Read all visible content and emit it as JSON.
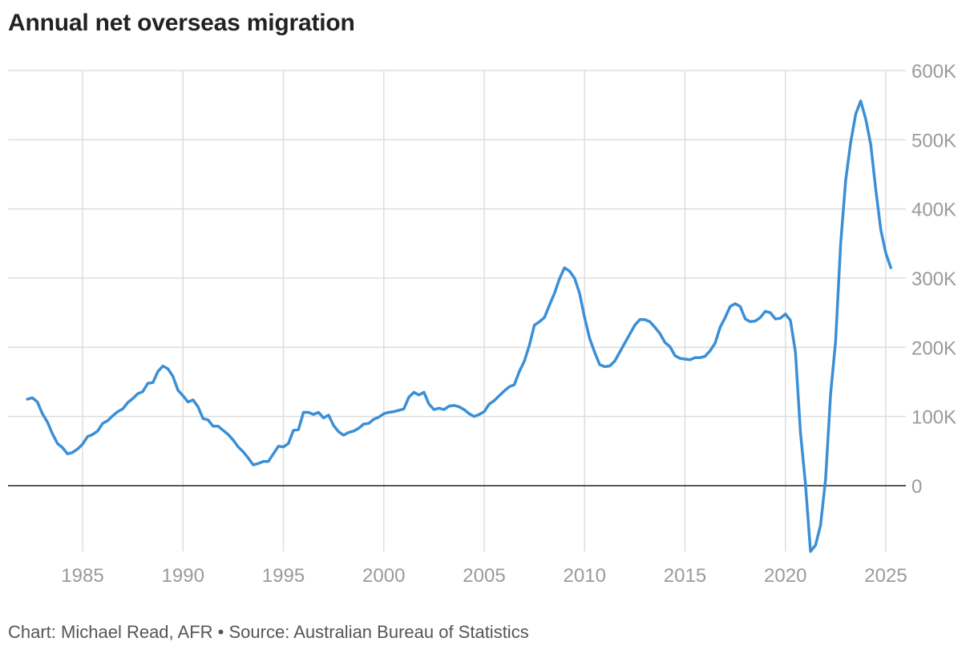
{
  "colors": {
    "line": "#3a8fd6",
    "grid": "#dddddd",
    "zero_line": "#222222",
    "tick_text": "#9a9a9a",
    "title_text": "#222222",
    "footer_text": "#555555"
  },
  "footer": {
    "credit": "Chart: Michael Read, AFR",
    "separator": "•",
    "source": "Source: Australian Bureau of Statistics"
  },
  "chart_data": {
    "type": "line",
    "title": "Annual net overseas migration",
    "xlabel": "",
    "ylabel": "",
    "xlim": [
      1981.6,
      2026.0
    ],
    "ylim": [
      -95000,
      600000
    ],
    "x_ticks": [
      1985,
      1990,
      1995,
      2000,
      2005,
      2010,
      2015,
      2020,
      2025
    ],
    "x_tick_labels": [
      "1985",
      "1990",
      "1995",
      "2000",
      "2005",
      "2010",
      "2015",
      "2020",
      "2025"
    ],
    "y_ticks": [
      0,
      100000,
      200000,
      300000,
      400000,
      500000,
      600000
    ],
    "y_tick_labels": [
      "0",
      "100K",
      "200K",
      "300K",
      "400K",
      "500K",
      "600K"
    ],
    "grid": true,
    "legend": "none",
    "series": [
      {
        "points": [
          [
            1982.25,
            125000
          ],
          [
            1982.5,
            127000
          ],
          [
            1982.75,
            121000
          ],
          [
            1983.0,
            104000
          ],
          [
            1983.25,
            92000
          ],
          [
            1983.5,
            75000
          ],
          [
            1983.75,
            61000
          ],
          [
            1984.0,
            55000
          ],
          [
            1984.25,
            46000
          ],
          [
            1984.5,
            48000
          ],
          [
            1984.75,
            53000
          ],
          [
            1985.0,
            60000
          ],
          [
            1985.25,
            71000
          ],
          [
            1985.5,
            74000
          ],
          [
            1985.75,
            79000
          ],
          [
            1986.0,
            90000
          ],
          [
            1986.25,
            94000
          ],
          [
            1986.5,
            101000
          ],
          [
            1986.75,
            107000
          ],
          [
            1987.0,
            111000
          ],
          [
            1987.25,
            120000
          ],
          [
            1987.5,
            126000
          ],
          [
            1987.75,
            133000
          ],
          [
            1988.0,
            136000
          ],
          [
            1988.25,
            148000
          ],
          [
            1988.5,
            149000
          ],
          [
            1988.75,
            165000
          ],
          [
            1989.0,
            173000
          ],
          [
            1989.25,
            169000
          ],
          [
            1989.5,
            158000
          ],
          [
            1989.75,
            138000
          ],
          [
            1990.0,
            130000
          ],
          [
            1990.25,
            121000
          ],
          [
            1990.5,
            124000
          ],
          [
            1990.75,
            114000
          ],
          [
            1991.0,
            97000
          ],
          [
            1991.25,
            95000
          ],
          [
            1991.5,
            86000
          ],
          [
            1991.75,
            86000
          ],
          [
            1992.0,
            80000
          ],
          [
            1992.25,
            74000
          ],
          [
            1992.5,
            66000
          ],
          [
            1992.75,
            56000
          ],
          [
            1993.0,
            49000
          ],
          [
            1993.25,
            40000
          ],
          [
            1993.5,
            30000
          ],
          [
            1993.75,
            32000
          ],
          [
            1994.0,
            35000
          ],
          [
            1994.25,
            35000
          ],
          [
            1994.5,
            46000
          ],
          [
            1994.75,
            57000
          ],
          [
            1995.0,
            56000
          ],
          [
            1995.25,
            61000
          ],
          [
            1995.5,
            80000
          ],
          [
            1995.75,
            81000
          ],
          [
            1996.0,
            106000
          ],
          [
            1996.25,
            106000
          ],
          [
            1996.5,
            103000
          ],
          [
            1996.75,
            106000
          ],
          [
            1997.0,
            98000
          ],
          [
            1997.25,
            102000
          ],
          [
            1997.5,
            87000
          ],
          [
            1997.75,
            78000
          ],
          [
            1998.0,
            73000
          ],
          [
            1998.25,
            77000
          ],
          [
            1998.5,
            79000
          ],
          [
            1998.75,
            83000
          ],
          [
            1999.0,
            89000
          ],
          [
            1999.25,
            90000
          ],
          [
            1999.5,
            96000
          ],
          [
            1999.75,
            99000
          ],
          [
            2000.0,
            104000
          ],
          [
            2000.25,
            106000
          ],
          [
            2000.5,
            107000
          ],
          [
            2000.75,
            109000
          ],
          [
            2001.0,
            111000
          ],
          [
            2001.25,
            128000
          ],
          [
            2001.5,
            135000
          ],
          [
            2001.75,
            131000
          ],
          [
            2002.0,
            135000
          ],
          [
            2002.25,
            118000
          ],
          [
            2002.5,
            110000
          ],
          [
            2002.75,
            112000
          ],
          [
            2003.0,
            110000
          ],
          [
            2003.25,
            115000
          ],
          [
            2003.5,
            116000
          ],
          [
            2003.75,
            114000
          ],
          [
            2004.0,
            110000
          ],
          [
            2004.25,
            104000
          ],
          [
            2004.5,
            100000
          ],
          [
            2004.75,
            103000
          ],
          [
            2005.0,
            107000
          ],
          [
            2005.25,
            118000
          ],
          [
            2005.5,
            123000
          ],
          [
            2005.75,
            130000
          ],
          [
            2006.0,
            137000
          ],
          [
            2006.25,
            143000
          ],
          [
            2006.5,
            146000
          ],
          [
            2006.75,
            165000
          ],
          [
            2007.0,
            180000
          ],
          [
            2007.25,
            203000
          ],
          [
            2007.5,
            232000
          ],
          [
            2007.75,
            237000
          ],
          [
            2008.0,
            243000
          ],
          [
            2008.25,
            261000
          ],
          [
            2008.5,
            278000
          ],
          [
            2008.75,
            299000
          ],
          [
            2009.0,
            315000
          ],
          [
            2009.25,
            310000
          ],
          [
            2009.5,
            300000
          ],
          [
            2009.75,
            278000
          ],
          [
            2010.0,
            243000
          ],
          [
            2010.25,
            213000
          ],
          [
            2010.5,
            193000
          ],
          [
            2010.75,
            175000
          ],
          [
            2011.0,
            172000
          ],
          [
            2011.25,
            173000
          ],
          [
            2011.5,
            180000
          ],
          [
            2011.75,
            193000
          ],
          [
            2012.0,
            206000
          ],
          [
            2012.25,
            219000
          ],
          [
            2012.5,
            232000
          ],
          [
            2012.75,
            240000
          ],
          [
            2013.0,
            240000
          ],
          [
            2013.25,
            237000
          ],
          [
            2013.5,
            229000
          ],
          [
            2013.75,
            220000
          ],
          [
            2014.0,
            207000
          ],
          [
            2014.25,
            201000
          ],
          [
            2014.5,
            188000
          ],
          [
            2014.75,
            184000
          ],
          [
            2015.0,
            183000
          ],
          [
            2015.25,
            182000
          ],
          [
            2015.5,
            185000
          ],
          [
            2015.75,
            185000
          ],
          [
            2016.0,
            187000
          ],
          [
            2016.25,
            195000
          ],
          [
            2016.5,
            206000
          ],
          [
            2016.75,
            229000
          ],
          [
            2017.0,
            243000
          ],
          [
            2017.25,
            259000
          ],
          [
            2017.5,
            263000
          ],
          [
            2017.75,
            259000
          ],
          [
            2018.0,
            241000
          ],
          [
            2018.25,
            237000
          ],
          [
            2018.5,
            238000
          ],
          [
            2018.75,
            243000
          ],
          [
            2019.0,
            252000
          ],
          [
            2019.25,
            250000
          ],
          [
            2019.5,
            241000
          ],
          [
            2019.75,
            242000
          ],
          [
            2020.0,
            248000
          ],
          [
            2020.25,
            239000
          ],
          [
            2020.5,
            193000
          ],
          [
            2020.75,
            77000
          ],
          [
            2021.0,
            2000
          ],
          [
            2021.25,
            -95000
          ],
          [
            2021.5,
            -86000
          ],
          [
            2021.75,
            -57000
          ],
          [
            2022.0,
            9000
          ],
          [
            2022.25,
            132000
          ],
          [
            2022.5,
            209000
          ],
          [
            2022.75,
            349000
          ],
          [
            2023.0,
            441000
          ],
          [
            2023.25,
            496000
          ],
          [
            2023.5,
            537000
          ],
          [
            2023.75,
            556000
          ],
          [
            2024.0,
            530000
          ],
          [
            2024.25,
            493000
          ],
          [
            2024.5,
            428000
          ],
          [
            2024.75,
            370000
          ],
          [
            2025.0,
            336000
          ],
          [
            2025.25,
            315000
          ]
        ]
      }
    ]
  }
}
